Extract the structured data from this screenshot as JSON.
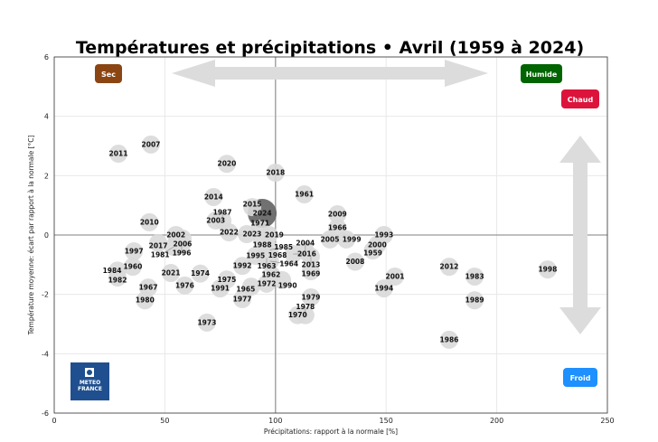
{
  "chart_data": {
    "type": "scatter",
    "title": "Températures et précipitations • Avril (1959 à 2024)",
    "xlabel": "Précipitations: rapport à la normale [%]",
    "ylabel": "Température moyenne: écart par rapport à la normale [°C]",
    "xlim": [
      0,
      250
    ],
    "ylim": [
      -6,
      6
    ],
    "xticks": [
      0,
      50,
      100,
      150,
      200,
      250
    ],
    "yticks": [
      -6,
      -4,
      -2,
      0,
      2,
      4,
      6
    ],
    "grid": true,
    "reference_lines": {
      "x": 100,
      "y": 0
    },
    "highlight_year": "2024",
    "points": [
      {
        "year": "2011",
        "x": 29,
        "y": 2.74
      },
      {
        "year": "2007",
        "x": 43.7,
        "y": 3.05
      },
      {
        "year": "2020",
        "x": 78,
        "y": 2.4
      },
      {
        "year": "2018",
        "x": 100,
        "y": 2.1
      },
      {
        "year": "1961",
        "x": 113,
        "y": 1.37
      },
      {
        "year": "2014",
        "x": 72,
        "y": 1.28
      },
      {
        "year": "2015",
        "x": 89.5,
        "y": 0.94
      },
      {
        "year": "2010",
        "x": 43,
        "y": 0.43
      },
      {
        "year": "2003",
        "x": 73,
        "y": 0.49
      },
      {
        "year": "1987",
        "x": 76,
        "y": 0.49
      },
      {
        "year": "2022",
        "x": 79,
        "y": 0.09
      },
      {
        "year": "2023",
        "x": 87,
        "y": 0.03
      },
      {
        "year": "1971",
        "x": 93,
        "y": 0.21
      },
      {
        "year": "2019",
        "x": 97,
        "y": 0
      },
      {
        "year": "1988",
        "x": 94,
        "y": -0.15
      },
      {
        "year": "2002",
        "x": 55,
        "y": 0
      },
      {
        "year": "2006",
        "x": 58,
        "y": -0.12
      },
      {
        "year": "2017",
        "x": 47,
        "y": -0.27
      },
      {
        "year": "1996",
        "x": 57.6,
        "y": -0.33
      },
      {
        "year": "1981",
        "x": 54,
        "y": -0.4
      },
      {
        "year": "1997",
        "x": 36,
        "y": -0.55
      },
      {
        "year": "1960",
        "x": 35.5,
        "y": -1.07
      },
      {
        "year": "1984",
        "x": 28.6,
        "y": -1.2
      },
      {
        "year": "1982",
        "x": 28.6,
        "y": -1.43
      },
      {
        "year": "2021",
        "x": 52.7,
        "y": -1.28
      },
      {
        "year": "1974",
        "x": 66,
        "y": -1.3
      },
      {
        "year": "1967",
        "x": 42.5,
        "y": -1.77
      },
      {
        "year": "1976",
        "x": 59,
        "y": -1.7
      },
      {
        "year": "1975",
        "x": 78,
        "y": -1.5
      },
      {
        "year": "1991",
        "x": 75,
        "y": -1.8
      },
      {
        "year": "1980",
        "x": 41,
        "y": -2.2
      },
      {
        "year": "1992",
        "x": 85,
        "y": -1.04
      },
      {
        "year": "1995",
        "x": 91,
        "y": -0.7
      },
      {
        "year": "1968",
        "x": 96,
        "y": -0.6
      },
      {
        "year": "1963",
        "x": 96,
        "y": -0.78
      },
      {
        "year": "1964",
        "x": 97.5,
        "y": -0.88
      },
      {
        "year": "1985",
        "x": 97.5,
        "y": -0.5
      },
      {
        "year": "1962",
        "x": 98,
        "y": -1.34
      },
      {
        "year": "1972",
        "x": 96,
        "y": -1.64
      },
      {
        "year": "1990",
        "x": 103,
        "y": -1.52
      },
      {
        "year": "1965",
        "x": 89,
        "y": -1.74
      },
      {
        "year": "1977",
        "x": 85,
        "y": -2.16
      },
      {
        "year": "1973",
        "x": 69,
        "y": -2.95
      },
      {
        "year": "2016",
        "x": 108,
        "y": -0.64
      },
      {
        "year": "2004",
        "x": 113.5,
        "y": -0.55
      },
      {
        "year": "2013",
        "x": 116,
        "y": -0.73
      },
      {
        "year": "1969",
        "x": 116,
        "y": -1.22
      },
      {
        "year": "1979",
        "x": 116,
        "y": -2.1
      },
      {
        "year": "1970",
        "x": 110,
        "y": -2.7
      },
      {
        "year": "1978",
        "x": 113.5,
        "y": -2.7
      },
      {
        "year": "2009",
        "x": 128,
        "y": 0.7
      },
      {
        "year": "1966",
        "x": 128,
        "y": 0.24
      },
      {
        "year": "2005",
        "x": 124.6,
        "y": -0.15
      },
      {
        "year": "1999",
        "x": 132,
        "y": -0.15
      },
      {
        "year": "1993",
        "x": 149,
        "y": 0
      },
      {
        "year": "2000",
        "x": 146,
        "y": -0.33
      },
      {
        "year": "1959",
        "x": 144,
        "y": -0.52
      },
      {
        "year": "2008",
        "x": 136,
        "y": -0.9
      },
      {
        "year": "2001",
        "x": 154,
        "y": -1.4
      },
      {
        "year": "1994",
        "x": 149,
        "y": -1.8
      },
      {
        "year": "2012",
        "x": 178.5,
        "y": -1.07
      },
      {
        "year": "1986",
        "x": 178.5,
        "y": -3.53
      },
      {
        "year": "1983",
        "x": 190,
        "y": -1.4
      },
      {
        "year": "1989",
        "x": 190,
        "y": -2.2
      },
      {
        "year": "1998",
        "x": 223,
        "y": -1.16
      },
      {
        "year": "2024",
        "x": 94,
        "y": 0.73
      }
    ],
    "annotations": {
      "dry": "Sec",
      "wet": "Humide",
      "hot": "Chaud",
      "cold": "Froid"
    },
    "colors": {
      "dry": "#8B4513",
      "wet": "#006400",
      "hot": "#DC143C",
      "cold": "#1E90FF",
      "point": "#d9d9d9",
      "highlight": "#696969"
    }
  },
  "logo": {
    "line1": "METEO",
    "line2": "FRANCE"
  }
}
